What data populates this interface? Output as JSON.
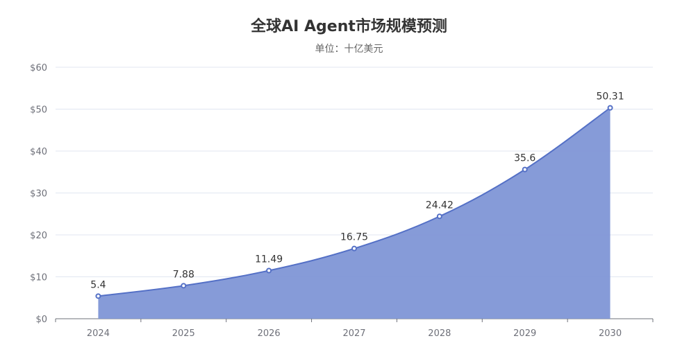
{
  "chart_data": {
    "type": "area",
    "title": "全球AI Agent市场规模预测",
    "subtitle": "单位：十亿美元",
    "categories": [
      "2024",
      "2025",
      "2026",
      "2027",
      "2028",
      "2029",
      "2030"
    ],
    "series": [
      {
        "values": [
          5.4,
          7.88,
          11.49,
          16.75,
          24.42,
          35.6,
          50.31
        ]
      }
    ],
    "data_labels": [
      "5.4",
      "7.88",
      "11.49",
      "16.75",
      "24.42",
      "35.6",
      "50.31"
    ],
    "ylim": [
      0,
      60
    ],
    "yticks": [
      0,
      10,
      20,
      30,
      40,
      50,
      60
    ],
    "ytick_labels": [
      "$0",
      "$10",
      "$20",
      "$30",
      "$40",
      "$50",
      "$60"
    ],
    "xlabel": "",
    "ylabel": "",
    "grid": true,
    "smooth": true,
    "colors": {
      "line": "#5470c6",
      "area": "#7f96d6",
      "grid": "#e0e6f1",
      "axis": "#6e7079"
    }
  }
}
